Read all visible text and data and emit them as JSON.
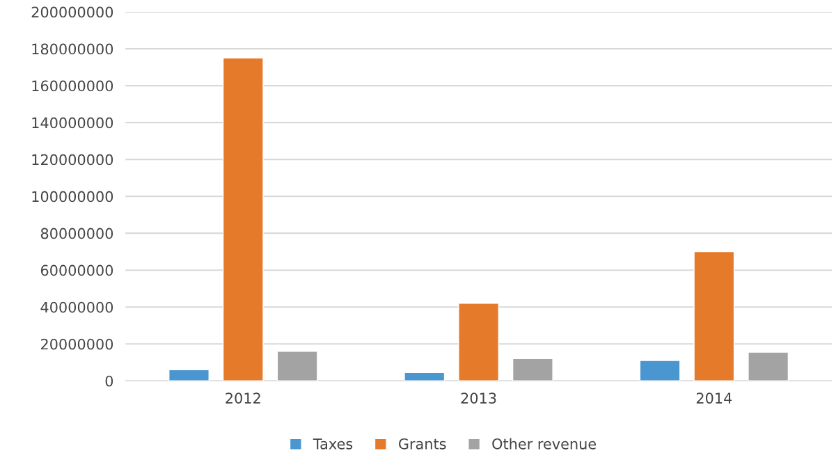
{
  "chart_data": {
    "type": "bar",
    "categories": [
      "2012",
      "2013",
      "2014"
    ],
    "series": [
      {
        "name": "Taxes",
        "color": "#4a96d0",
        "values": [
          6000000,
          4500000,
          11000000
        ]
      },
      {
        "name": "Grants",
        "color": "#e57b2a",
        "values": [
          175000000,
          42000000,
          70000000
        ]
      },
      {
        "name": "Other revenue",
        "color": "#a3a3a3",
        "values": [
          16000000,
          12000000,
          15500000
        ]
      }
    ],
    "ylim": [
      0,
      200000000
    ],
    "yticks": [
      0,
      20000000,
      40000000,
      60000000,
      80000000,
      100000000,
      120000000,
      140000000,
      160000000,
      180000000,
      200000000
    ],
    "grid": "y",
    "legend": "bottom"
  }
}
